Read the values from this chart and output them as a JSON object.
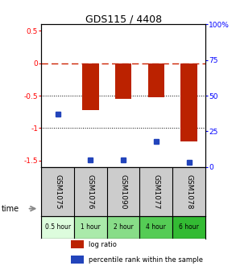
{
  "title": "GDS115 / 4408",
  "samples": [
    "GSM1075",
    "GSM1076",
    "GSM1090",
    "GSM1077",
    "GSM1078"
  ],
  "time_labels": [
    "0.5 hour",
    "1 hour",
    "2 hour",
    "4 hour",
    "6 hour"
  ],
  "time_colors": [
    "#ddfcdd",
    "#aaeaaa",
    "#88dd88",
    "#55cc55",
    "#33bb33"
  ],
  "log_ratios": [
    0.0,
    -0.72,
    -0.55,
    -0.52,
    -1.2
  ],
  "percentile_ranks": [
    37,
    5,
    5,
    18,
    3
  ],
  "ylim_left": [
    -1.6,
    0.6
  ],
  "ylim_right": [
    0,
    100
  ],
  "bar_color": "#bb2200",
  "dot_color": "#2244bb",
  "zero_line_color": "#cc2200",
  "bg_color": "#ffffff",
  "left_tick_vals": [
    0.5,
    0.0,
    -0.5,
    -1.0,
    -1.5
  ],
  "right_tick_vals": [
    100,
    75,
    50,
    25,
    0
  ],
  "bar_width": 0.5,
  "sample_bg": "#cccccc"
}
